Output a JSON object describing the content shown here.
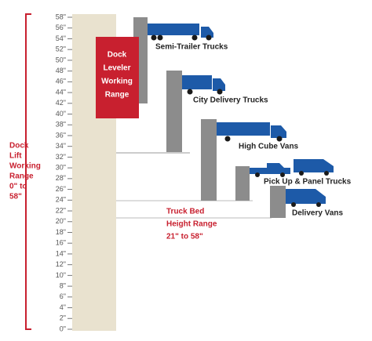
{
  "scale": {
    "ticks": [
      "0\"",
      "2\"",
      "4\"",
      "6\"",
      "8\"",
      "10\"",
      "12\"",
      "14\"",
      "16\"",
      "18\"",
      "20\"",
      "22\"",
      "24\"",
      "26\"",
      "28\"",
      "30\"",
      "32\"",
      "34\"",
      "36\"",
      "38\"",
      "40\"",
      "42\"",
      "44\"",
      "46\"",
      "48\"",
      "50\"",
      "52\"",
      "54\"",
      "56\"",
      "58\""
    ]
  },
  "dock_lift": {
    "lines": [
      "Dock",
      "Lift",
      "Working",
      "Range",
      "0\" to",
      "58\""
    ]
  },
  "dock_leveler": {
    "lines": [
      "Dock",
      "Leveler",
      "Working",
      "Range"
    ]
  },
  "trucks": [
    {
      "label": "Semi-Trailer Trucks"
    },
    {
      "label": "City Delivery Trucks"
    },
    {
      "label": "High Cube Vans"
    },
    {
      "label": "Pick Up & Panel Trucks"
    },
    {
      "label": "Delivery Vans"
    }
  ],
  "truck_bed": {
    "lines": [
      "Truck Bed",
      "Height Range",
      "21\" to 58\""
    ]
  }
}
